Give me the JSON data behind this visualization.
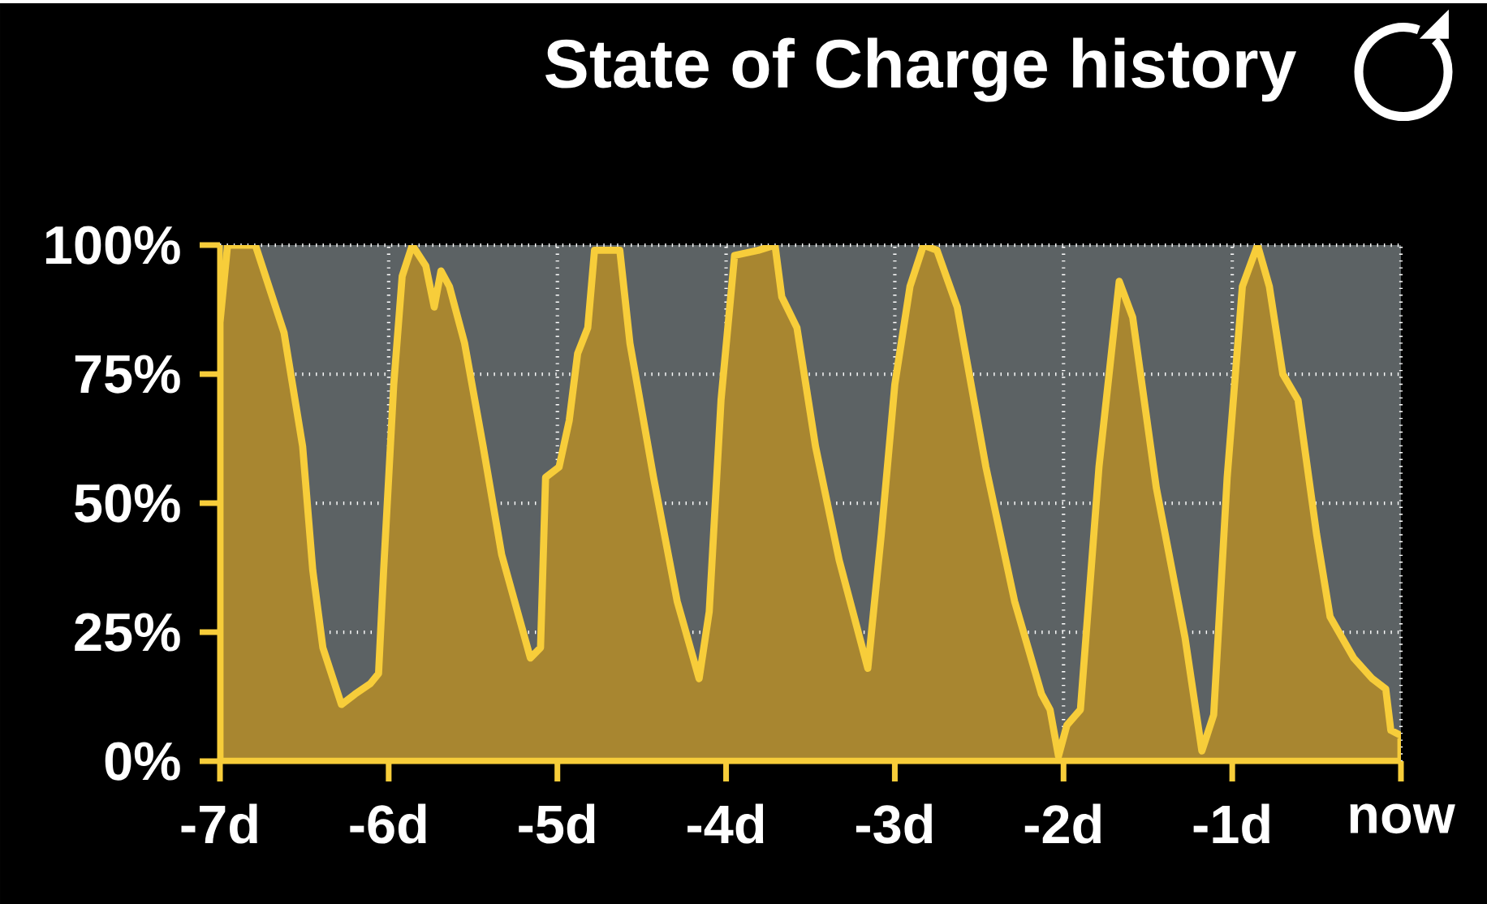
{
  "chart_data": {
    "type": "area",
    "title": "State of Charge history",
    "xlim": [
      -7,
      0
    ],
    "ylim": [
      0,
      100
    ],
    "xticks": [
      {
        "value": -7,
        "label": "-7d"
      },
      {
        "value": -6,
        "label": "-6d"
      },
      {
        "value": -5,
        "label": "-5d"
      },
      {
        "value": -4,
        "label": "-4d"
      },
      {
        "value": -3,
        "label": "-3d"
      },
      {
        "value": -2,
        "label": "-2d"
      },
      {
        "value": -1,
        "label": "-1d"
      },
      {
        "value": 0,
        "label": "now"
      }
    ],
    "yticks": [
      {
        "value": 0,
        "label": "0%"
      },
      {
        "value": 25,
        "label": "25%"
      },
      {
        "value": 50,
        "label": "50%"
      },
      {
        "value": 75,
        "label": "75%"
      },
      {
        "value": 100,
        "label": "100%"
      }
    ],
    "grid": true,
    "marker": "none",
    "line_style": "solid",
    "x": [
      -7.0,
      -6.955,
      -6.79,
      -6.67,
      -6.62,
      -6.51,
      -6.45,
      -6.39,
      -6.28,
      -6.2,
      -6.11,
      -6.06,
      -6.03,
      -5.97,
      -5.92,
      -5.86,
      -5.78,
      -5.73,
      -5.69,
      -5.64,
      -5.55,
      -5.44,
      -5.33,
      -5.16,
      -5.1,
      -5.07,
      -4.99,
      -4.93,
      -4.88,
      -4.82,
      -4.78,
      -4.63,
      -4.57,
      -4.43,
      -4.29,
      -4.16,
      -4.1,
      -4.03,
      -3.95,
      -3.81,
      -3.71,
      -3.67,
      -3.58,
      -3.47,
      -3.33,
      -3.16,
      -3.08,
      -3.0,
      -2.91,
      -2.83,
      -2.75,
      -2.63,
      -2.46,
      -2.29,
      -2.13,
      -2.08,
      -2.03,
      -1.98,
      -1.9,
      -1.79,
      -1.67,
      -1.59,
      -1.45,
      -1.28,
      -1.18,
      -1.11,
      -1.03,
      -0.94,
      -0.85,
      -0.78,
      -0.7,
      -0.61,
      -0.5,
      -0.42,
      -0.28,
      -0.17,
      -0.09,
      -0.06,
      0.0
    ],
    "series": [
      {
        "color": "#f7cd3a",
        "values": [
          85,
          100,
          100,
          88,
          83,
          61,
          37,
          22,
          11,
          13,
          15,
          17,
          37,
          73,
          94,
          100,
          96,
          88,
          95,
          92,
          81,
          61,
          40,
          20,
          22,
          55,
          57,
          66,
          79,
          84,
          99,
          99,
          81,
          55,
          31,
          16,
          29,
          70,
          98,
          99,
          100,
          90,
          84,
          61,
          39,
          18,
          44,
          73,
          92,
          100,
          99,
          88,
          57,
          31,
          13,
          10,
          1,
          7,
          10,
          57,
          93,
          86,
          53,
          24,
          2,
          9,
          55,
          92,
          100,
          92,
          75,
          70,
          44,
          28,
          20,
          16,
          14,
          6,
          5
        ]
      }
    ]
  }
}
